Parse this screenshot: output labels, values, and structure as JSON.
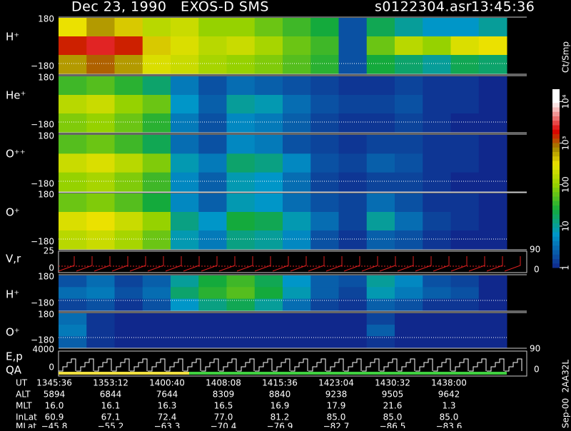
{
  "header": {
    "title": "Dec 23, 1990   EXOS-D SMS",
    "file": "s0122304.asr",
    "time": "13:45:36"
  },
  "panels": [
    {
      "label": "H⁺",
      "top_tick": "180",
      "bottom_tick": "−180",
      "cells": [
        [
          2.5,
          2.8,
          2.6,
          2.2,
          2.3,
          2.0,
          2.0,
          1.8,
          1.6,
          1.4,
          0.3,
          1.3,
          1.0,
          0.8,
          0.8,
          1.0
        ],
        [
          3.2,
          3.4,
          3.2,
          2.6,
          2.4,
          2.2,
          2.3,
          2.1,
          1.8,
          1.6,
          0.3,
          1.8,
          2.2,
          2.0,
          2.4,
          2.5
        ],
        [
          2.8,
          3.0,
          2.8,
          2.4,
          2.3,
          2.1,
          2.0,
          1.9,
          1.7,
          1.5,
          0.3,
          1.4,
          1.2,
          1.0,
          1.3,
          1.2
        ]
      ]
    },
    {
      "label": "He⁺",
      "top_tick": "180",
      "bottom_tick": "−180",
      "cells": [
        [
          1.6,
          1.7,
          1.5,
          1.2,
          0.6,
          0.3,
          0.5,
          0.4,
          0.3,
          0.2,
          0.1,
          0.1,
          0.2,
          0.1,
          0.1,
          0.0
        ],
        [
          2.2,
          2.3,
          2.0,
          1.8,
          0.8,
          0.4,
          1.0,
          0.9,
          0.5,
          0.3,
          0.2,
          0.2,
          0.3,
          0.1,
          0.1,
          0.0
        ],
        [
          1.9,
          2.0,
          1.8,
          1.5,
          0.6,
          0.3,
          0.7,
          0.6,
          0.4,
          0.2,
          0.1,
          0.1,
          0.2,
          0.1,
          0.0,
          0.0
        ]
      ]
    },
    {
      "label": "O⁺⁺",
      "top_tick": "180",
      "bottom_tick": "−180",
      "cells": [
        [
          1.7,
          1.8,
          1.6,
          1.3,
          0.5,
          0.3,
          0.7,
          0.6,
          0.3,
          0.2,
          0.1,
          0.2,
          0.2,
          0.1,
          0.1,
          0.0
        ],
        [
          2.3,
          2.4,
          2.2,
          1.9,
          0.9,
          0.6,
          1.2,
          1.1,
          0.7,
          0.3,
          0.2,
          0.4,
          0.3,
          0.1,
          0.1,
          0.0
        ],
        [
          2.0,
          2.1,
          1.9,
          1.6,
          0.7,
          0.4,
          0.9,
          0.8,
          0.5,
          0.2,
          0.1,
          0.2,
          0.2,
          0.1,
          0.0,
          0.0
        ]
      ]
    },
    {
      "label": "O⁺",
      "top_tick": "180",
      "bottom_tick": "−180",
      "cells": [
        [
          1.8,
          1.9,
          1.7,
          1.4,
          0.7,
          0.4,
          0.9,
          0.8,
          0.5,
          0.3,
          0.2,
          0.5,
          0.3,
          0.1,
          0.1,
          0.0
        ],
        [
          2.4,
          2.5,
          2.3,
          2.0,
          1.1,
          0.8,
          1.4,
          1.3,
          0.9,
          0.5,
          0.2,
          1.0,
          0.5,
          0.2,
          0.1,
          0.0
        ],
        [
          2.2,
          2.3,
          2.1,
          1.8,
          0.9,
          0.6,
          1.1,
          1.0,
          0.7,
          0.3,
          0.1,
          0.4,
          0.3,
          0.1,
          0.0,
          0.0
        ]
      ]
    },
    {
      "label": "H⁺",
      "top_tick": "180",
      "bottom_tick": "−180",
      "cells": [
        [
          0.3,
          0.5,
          0.2,
          0.4,
          1.0,
          1.4,
          1.6,
          1.3,
          0.8,
          0.4,
          0.3,
          1.0,
          0.7,
          0.3,
          0.2,
          0.0
        ],
        [
          0.5,
          0.6,
          0.3,
          0.5,
          1.2,
          1.5,
          1.7,
          1.4,
          0.9,
          0.4,
          0.2,
          0.9,
          0.6,
          0.4,
          0.3,
          0.0
        ],
        [
          0.2,
          0.3,
          0.1,
          0.3,
          0.8,
          1.1,
          1.3,
          1.0,
          0.5,
          0.2,
          0.1,
          0.4,
          0.3,
          0.1,
          0.1,
          0.0
        ]
      ]
    },
    {
      "label": "O⁺",
      "top_tick": "180",
      "bottom_tick": "−180",
      "cells": [
        [
          0.5,
          0.1,
          0.0,
          0.0,
          0.0,
          0.0,
          0.0,
          0.0,
          0.0,
          0.0,
          0.0,
          0.2,
          0.0,
          0.0,
          0.0,
          0.0
        ],
        [
          0.6,
          0.1,
          0.0,
          0.0,
          0.0,
          0.0,
          0.0,
          0.0,
          0.0,
          0.0,
          0.0,
          0.4,
          0.0,
          0.0,
          0.0,
          0.0
        ],
        [
          0.4,
          0.1,
          0.0,
          0.0,
          0.0,
          0.0,
          0.0,
          0.0,
          0.0,
          0.0,
          0.0,
          0.1,
          0.0,
          0.0,
          0.0,
          0.0
        ]
      ]
    }
  ],
  "vr_panel": {
    "label": "V,r",
    "top_tick": "25",
    "bottom_tick": "0",
    "right_top": "90",
    "right_bottom": "0"
  },
  "ep_panel": {
    "label_1": "E,p",
    "label_2": "QA",
    "top_tick": "4000",
    "bottom_tick": "0",
    "right_top": "90",
    "right_bottom": "0"
  },
  "colorbar": {
    "title": "Ct/Smp",
    "lim": [
      0,
      4.3
    ],
    "ticks": [
      {
        "value": 4,
        "label": "10⁴"
      },
      {
        "value": 3,
        "label": "10³"
      },
      {
        "value": 2,
        "label": "100"
      },
      {
        "value": 1,
        "label": "10"
      },
      {
        "value": 0,
        "label": "1"
      }
    ]
  },
  "footer": {
    "row_labels": [
      "UT",
      "ALT",
      "MLT",
      "InLat",
      "MLat"
    ],
    "rows": [
      [
        "1345:36",
        "1353:12",
        "1400:40",
        "1408:08",
        "1415:36",
        "1423:04",
        "1430:32",
        "1438:00"
      ],
      [
        "5894",
        "6844",
        "7644",
        "8309",
        "8840",
        "9238",
        "9505",
        "9642"
      ],
      [
        "16.0",
        "16.1",
        "16.3",
        "16.5",
        "16.9",
        "17.9",
        "21.6",
        "1.3"
      ],
      [
        "60.9",
        "67.1",
        "72.4",
        "77.0",
        "81.2",
        "85.0",
        "85.0",
        "85.0"
      ],
      [
        "−45.8",
        "−55.2",
        "−63.3",
        "−70.4",
        "−76.9",
        "−82.7",
        "−86.5",
        "−83.6"
      ]
    ]
  },
  "side_note": "Sep-00  2AA32L"
}
